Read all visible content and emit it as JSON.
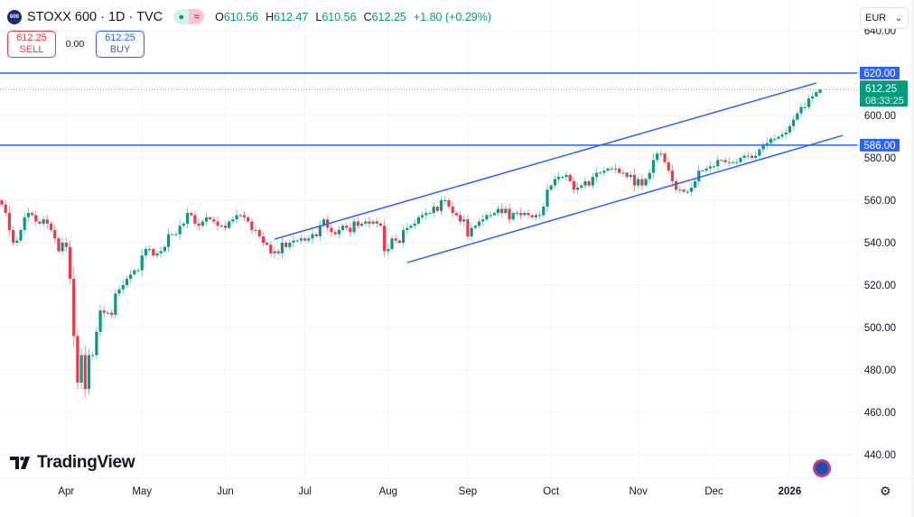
{
  "header": {
    "logo_text": "600",
    "title": "STOXX 600 · 1D · TVC",
    "open_label": "O",
    "open": "610.56",
    "high_label": "H",
    "high": "612.47",
    "low_label": "L",
    "low": "610.56",
    "close_label": "C",
    "close": "612.25",
    "change": "+1.80 (+0.29%)",
    "pill_icon": "≈"
  },
  "trade": {
    "sell_price": "612.25",
    "sell_label": "SELL",
    "spread": "0.00",
    "buy_price": "612.25",
    "buy_label": "BUY"
  },
  "currency": {
    "value": "EUR",
    "chevron": "⌄"
  },
  "brand": "TradingView",
  "colors": {
    "up": "#089981",
    "down": "#f23645",
    "line": "#2962ff"
  },
  "chart_data": {
    "type": "candlestick",
    "title": "STOXX 600 · 1D · TVC",
    "ylim": [
      432,
      648
    ],
    "y_ticks": [
      "640.00",
      "600.00",
      "580.00",
      "560.00",
      "540.00",
      "520.00",
      "500.00",
      "480.00",
      "460.00",
      "440.00"
    ],
    "y_tick_values": [
      640,
      600,
      580,
      560,
      540,
      520,
      500,
      480,
      460,
      440
    ],
    "x_ticks": [
      {
        "label": "Apr",
        "index": 17
      },
      {
        "label": "May",
        "index": 37
      },
      {
        "label": "Jun",
        "index": 59
      },
      {
        "label": "Jul",
        "index": 80
      },
      {
        "label": "Aug",
        "index": 102
      },
      {
        "label": "Sep",
        "index": 123
      },
      {
        "label": "Oct",
        "index": 145
      },
      {
        "label": "Nov",
        "index": 168
      },
      {
        "label": "Dec",
        "index": 188
      },
      {
        "label": "2026",
        "index": 208,
        "bold": true
      }
    ],
    "closes": [
      558,
      554,
      546,
      540,
      541,
      546,
      552,
      554,
      553,
      550,
      549,
      551,
      549,
      546,
      542,
      536,
      540,
      538,
      523,
      496,
      474,
      487,
      471,
      487,
      487,
      498,
      508,
      507,
      507,
      506,
      516,
      518,
      520,
      523,
      525,
      527,
      527,
      534,
      537,
      537,
      534,
      535,
      536,
      538,
      544,
      544,
      544,
      548,
      549,
      554,
      553,
      549,
      548,
      550,
      552,
      551,
      550,
      548,
      548,
      547,
      550,
      551,
      553,
      553,
      552,
      550,
      546,
      546,
      543,
      540,
      539,
      535,
      536,
      535,
      540,
      538,
      540,
      541,
      541,
      542,
      541,
      542,
      544,
      543,
      548,
      551,
      547,
      545,
      544,
      546,
      548,
      547,
      545,
      550,
      548,
      549,
      550,
      549,
      550,
      549,
      548,
      536,
      537,
      542,
      541,
      540,
      546,
      547,
      548,
      549,
      552,
      553,
      554,
      554,
      557,
      555,
      560,
      560,
      557,
      554,
      553,
      550,
      551,
      543,
      547,
      548,
      550,
      551,
      553,
      553,
      554,
      556,
      554,
      556,
      551,
      554,
      554,
      553,
      554,
      553,
      552,
      553,
      553,
      557,
      565,
      567,
      570,
      571,
      571,
      572,
      569,
      565,
      566,
      567,
      569,
      567,
      571,
      573,
      573,
      574,
      575,
      575,
      575,
      573,
      573,
      571,
      572,
      567,
      570,
      567,
      570,
      573,
      579,
      582,
      582,
      578,
      574,
      569,
      565,
      565,
      564,
      564,
      566,
      569,
      574,
      574,
      575,
      576,
      576,
      579,
      579,
      578,
      578,
      578,
      578,
      580,
      581,
      581,
      580,
      581,
      584,
      586,
      587,
      589,
      589,
      590,
      591,
      592,
      595,
      598,
      601,
      604,
      604,
      608,
      609,
      611,
      612.25
    ],
    "last_candle": {
      "open": 610.56,
      "high": 612.47,
      "low": 610.56,
      "close": 612.25
    },
    "horizontal_lines": [
      {
        "price": 620.0,
        "label": "620.00"
      },
      {
        "price": 586.0,
        "label": "586.00"
      }
    ],
    "channel_lines": [
      {
        "from": {
          "index": 72,
          "price": 541.7
        },
        "to": {
          "index": 215,
          "price": 615.3
        }
      },
      {
        "from": {
          "index": 107,
          "price": 530.6
        },
        "to": {
          "index": 222,
          "price": 590.6
        }
      }
    ],
    "last_price": {
      "price": 612.25,
      "label": "612.25",
      "countdown": "08:33:25"
    }
  }
}
